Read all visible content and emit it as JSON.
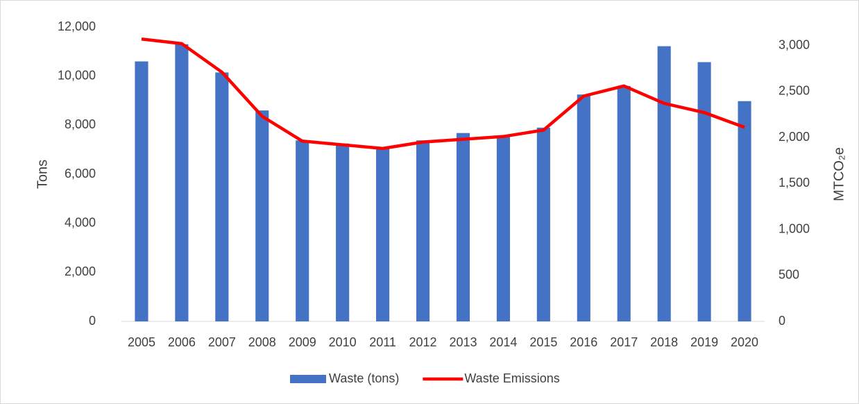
{
  "chart_data": {
    "type": "combo",
    "categories": [
      "2005",
      "2006",
      "2007",
      "2008",
      "2009",
      "2010",
      "2011",
      "2012",
      "2013",
      "2014",
      "2015",
      "2016",
      "2017",
      "2018",
      "2019",
      "2020"
    ],
    "series": [
      {
        "name": "Waste (tons)",
        "type": "bar",
        "axis": "y",
        "color": "#4472c4",
        "values": [
          10600,
          11300,
          10150,
          8600,
          7380,
          7250,
          7100,
          7380,
          7680,
          7580,
          7900,
          9250,
          9600,
          11220,
          10570,
          8980
        ]
      },
      {
        "name": "Waste Emissions",
        "type": "line",
        "axis": "y2",
        "color": "#ff0000",
        "values": [
          3070,
          3020,
          2710,
          2230,
          1960,
          1920,
          1880,
          1950,
          1980,
          2010,
          2080,
          2450,
          2560,
          2370,
          2270,
          2110
        ]
      }
    ],
    "y_label": "Tons",
    "y2_label": "MTCO₂e",
    "ylim": [
      0,
      12000
    ],
    "yticks": [
      0,
      {
        "value": 2000,
        "label": "2,000"
      },
      {
        "value": 4000,
        "label": "4,000"
      },
      {
        "value": 6000,
        "label": "6,000"
      },
      {
        "value": 8000,
        "label": "8,000"
      },
      {
        "value": 10000,
        "label": "10,000"
      },
      {
        "value": 12000,
        "label": "12,000"
      }
    ],
    "y2lim": [
      0,
      3200
    ],
    "y2ticks": [
      0,
      500,
      {
        "value": 1000,
        "label": "1,000"
      },
      {
        "value": 1500,
        "label": "1,500"
      },
      {
        "value": 2000,
        "label": "2,000"
      },
      {
        "value": 2500,
        "label": "2,500"
      },
      {
        "value": 3000,
        "label": "3,000"
      }
    ],
    "grid": false,
    "legend": "bottom"
  }
}
